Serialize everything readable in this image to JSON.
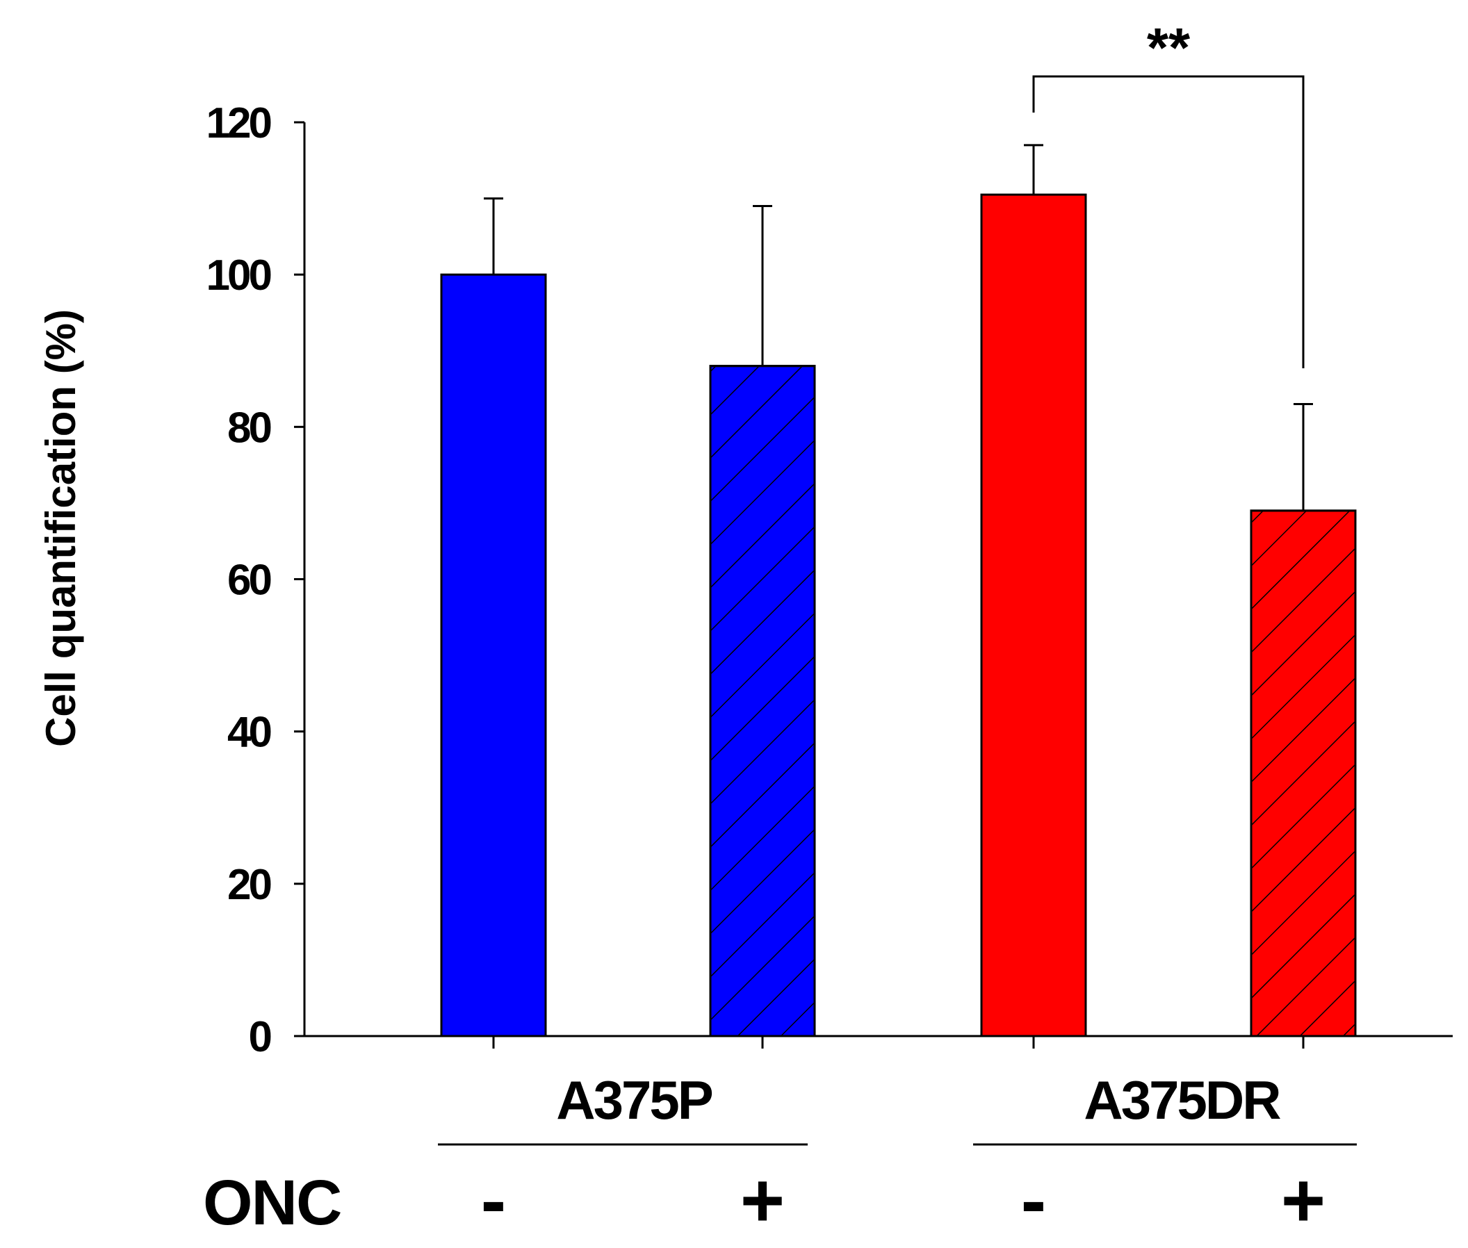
{
  "chart_data": {
    "type": "bar",
    "title": "",
    "xlabel": "",
    "ylabel": "Cell quantification (%)",
    "ylim": [
      0,
      120
    ],
    "yticks": [
      0,
      20,
      40,
      60,
      80,
      100,
      120
    ],
    "groups": [
      {
        "name": "A375P",
        "bars": [
          0,
          1
        ]
      },
      {
        "name": "A375DR",
        "bars": [
          2,
          3
        ]
      }
    ],
    "row_label": "ONC",
    "bars": [
      {
        "group": "A375P",
        "onc": "-",
        "value": 100,
        "error": 10,
        "color": "#0000ff",
        "hatched": false
      },
      {
        "group": "A375P",
        "onc": "+",
        "value": 88,
        "error": 21,
        "color": "#0000ff",
        "hatched": true
      },
      {
        "group": "A375DR",
        "onc": "-",
        "value": 110.5,
        "error": 6.5,
        "color": "#ff0000",
        "hatched": false
      },
      {
        "group": "A375DR",
        "onc": "+",
        "value": 69,
        "error": 14,
        "color": "#ff0000",
        "hatched": true
      }
    ],
    "significance": [
      {
        "from": 2,
        "to": 3,
        "label": "**"
      }
    ]
  }
}
